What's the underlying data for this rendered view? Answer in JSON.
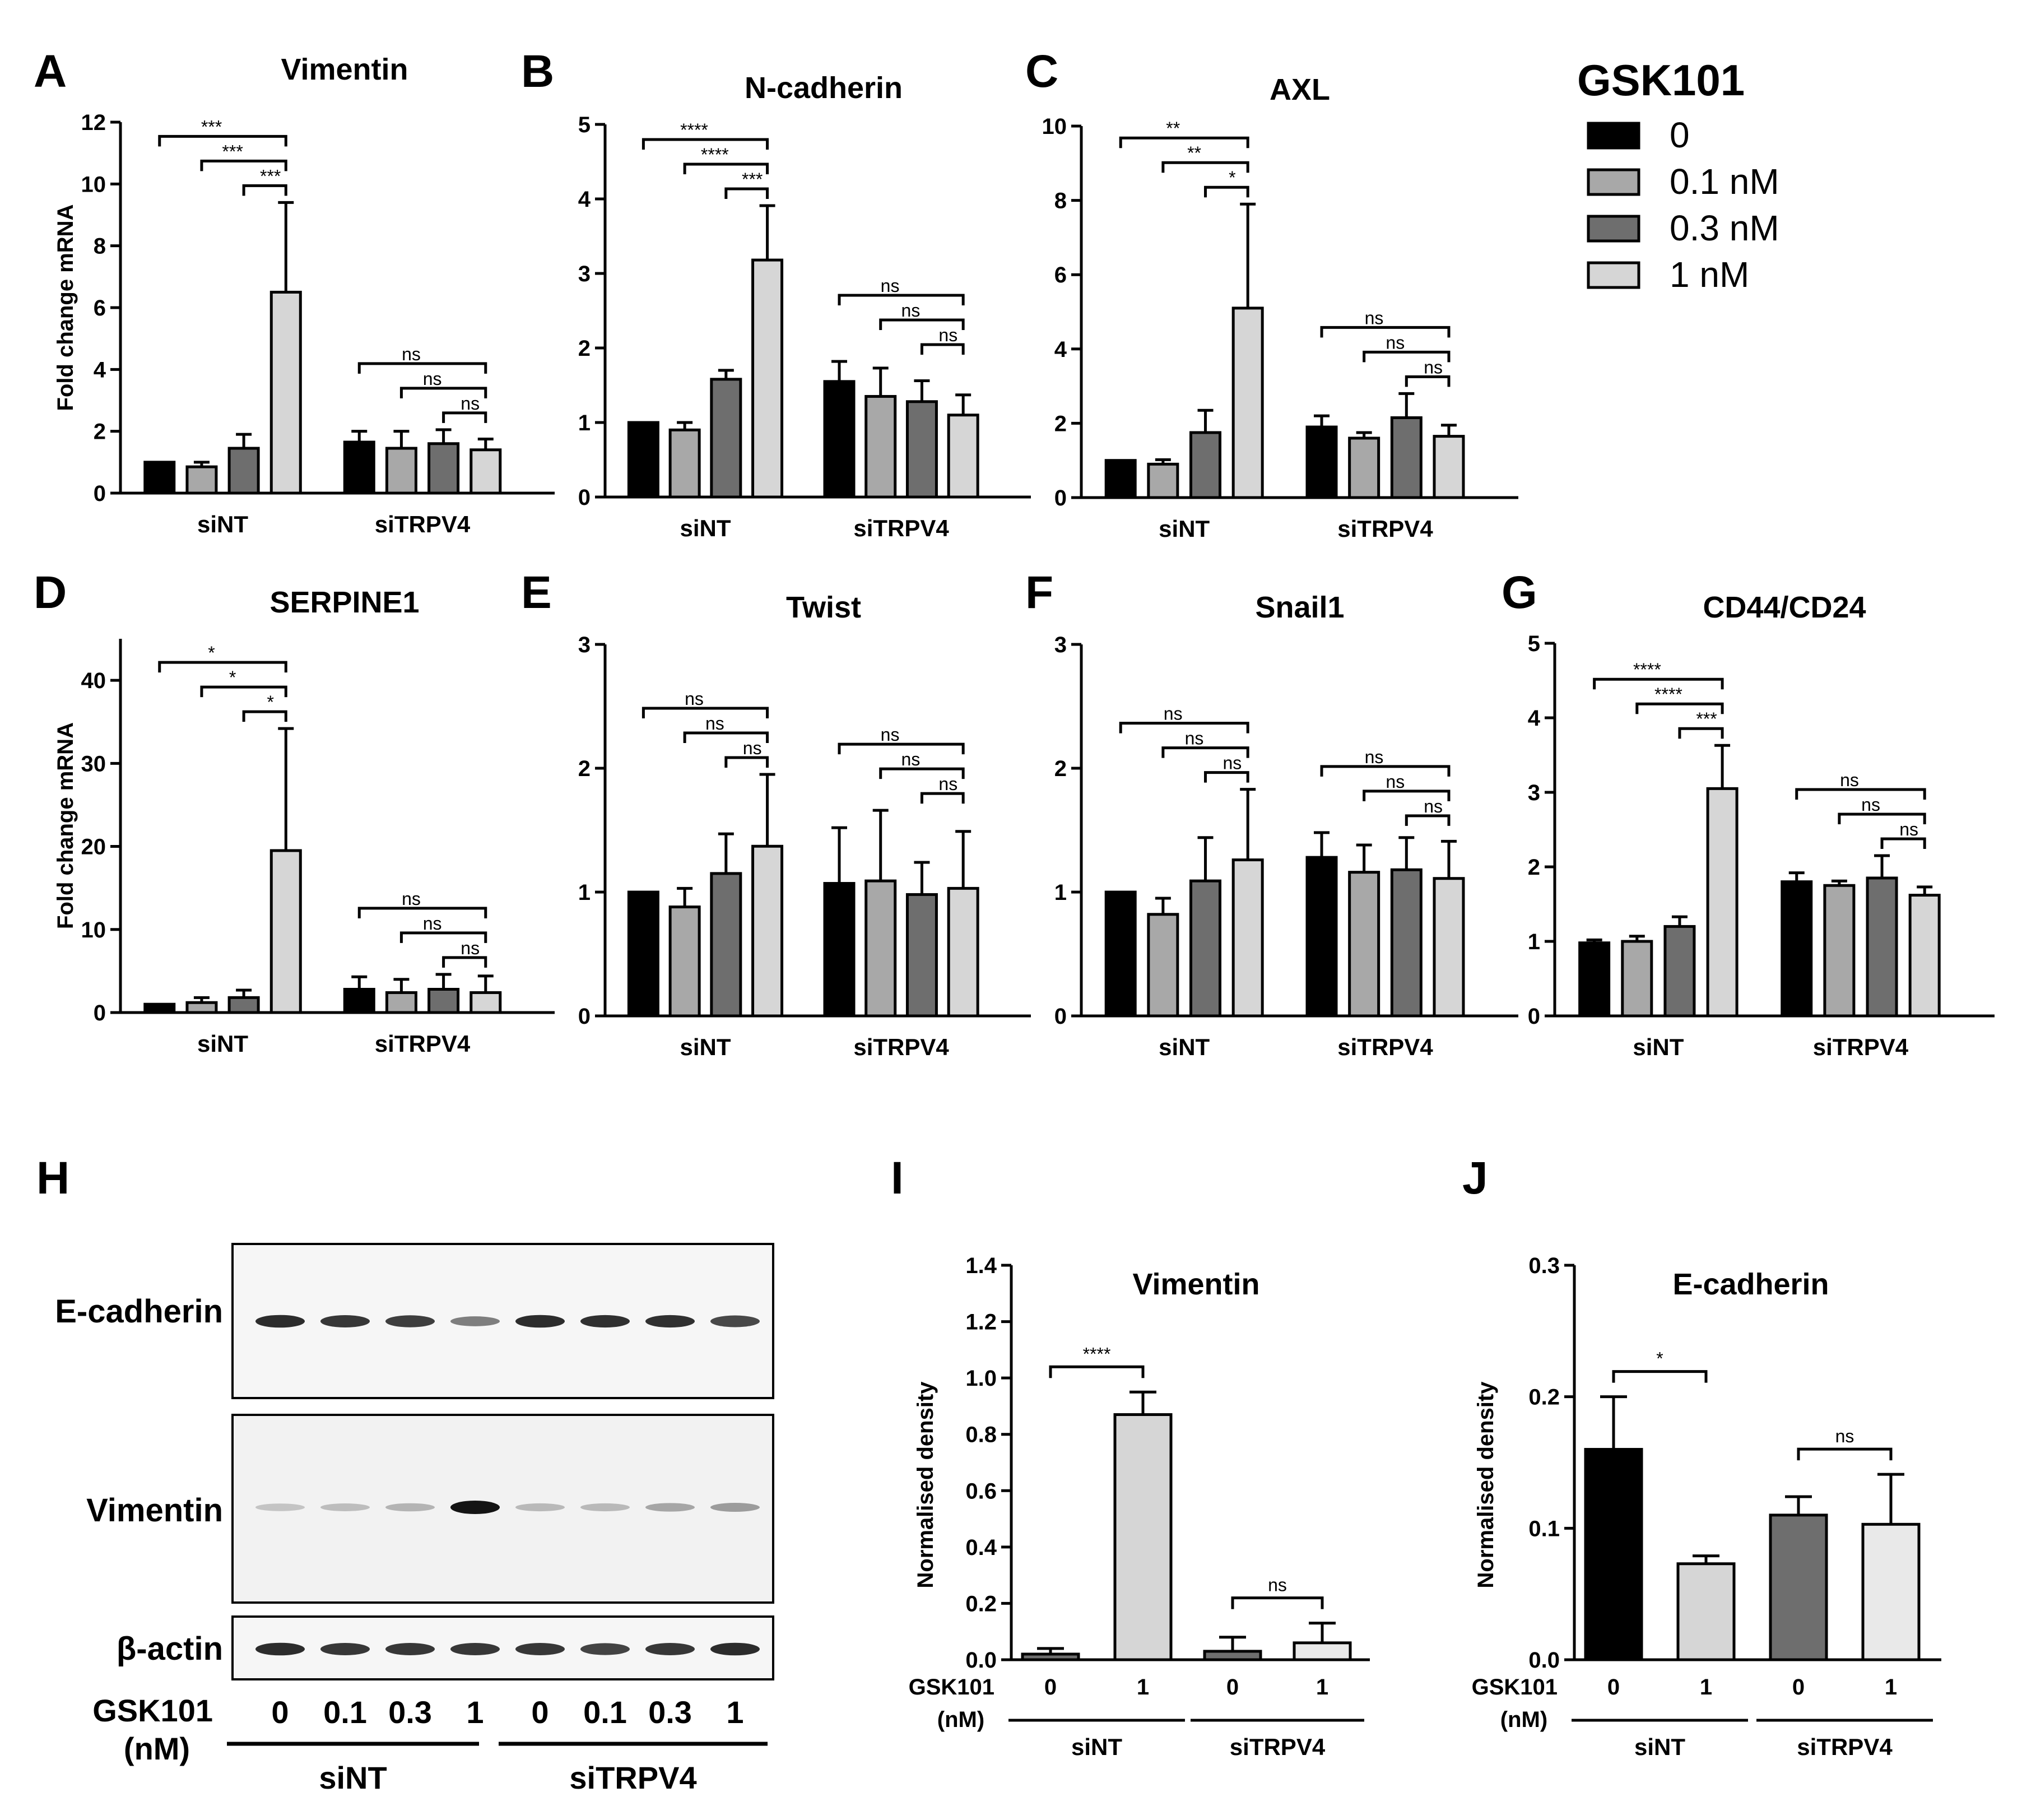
{
  "colors": {
    "black": "#000000",
    "grey_light": "#a8a8a8",
    "grey_dark": "#6e6e6e",
    "grey_vlight": "#d6d6d6",
    "vlightest": "#e9e9e9"
  },
  "legend": {
    "title": "GSK101",
    "items": [
      {
        "label": "0",
        "color_key": "black"
      },
      {
        "label": "0.1 nM",
        "color_key": "grey_light"
      },
      {
        "label": "0.3 nM",
        "color_key": "grey_dark"
      },
      {
        "label": "1 nM",
        "color_key": "grey_vlight"
      }
    ]
  },
  "chart_data": [
    {
      "panel": "A",
      "type": "bar",
      "title": "Vimentin",
      "ylabel": "Fold change mRNA",
      "ylim": [
        0,
        12
      ],
      "yticks": [
        "0",
        "2",
        "4",
        "6",
        "8",
        "10",
        "12"
      ],
      "groups": [
        "siNT",
        "siTRPV4"
      ],
      "series": [
        {
          "name": "0",
          "values": [
            1.0,
            1.65
          ],
          "errors": [
            0,
            0.35
          ]
        },
        {
          "name": "0.1 nM",
          "values": [
            0.85,
            1.45
          ],
          "errors": [
            0.15,
            0.55
          ]
        },
        {
          "name": "0.3 nM",
          "values": [
            1.45,
            1.6
          ],
          "errors": [
            0.45,
            0.45
          ]
        },
        {
          "name": "1 nM",
          "values": [
            6.5,
            1.4
          ],
          "errors": [
            2.9,
            0.35
          ]
        }
      ],
      "sig": [
        [
          "***",
          "***",
          "***"
        ],
        [
          "ns",
          "ns",
          "ns"
        ]
      ]
    },
    {
      "panel": "B",
      "type": "bar",
      "title": "N-cadherin",
      "ylabel": "",
      "ylim": [
        0,
        5
      ],
      "yticks": [
        "0",
        "1",
        "2",
        "3",
        "4",
        "5"
      ],
      "groups": [
        "siNT",
        "siTRPV4"
      ],
      "series": [
        {
          "name": "0",
          "values": [
            1.0,
            1.55
          ],
          "errors": [
            0,
            0.27
          ]
        },
        {
          "name": "0.1 nM",
          "values": [
            0.9,
            1.35
          ],
          "errors": [
            0.1,
            0.38
          ]
        },
        {
          "name": "0.3 nM",
          "values": [
            1.58,
            1.28
          ],
          "errors": [
            0.12,
            0.28
          ]
        },
        {
          "name": "1 nM",
          "values": [
            3.18,
            1.1
          ],
          "errors": [
            0.73,
            0.27
          ]
        }
      ],
      "sig": [
        [
          "****",
          "****",
          "***"
        ],
        [
          "ns",
          "ns",
          "ns"
        ]
      ]
    },
    {
      "panel": "C",
      "type": "bar",
      "title": "AXL",
      "ylabel": "",
      "ylim": [
        0,
        10
      ],
      "yticks": [
        "0",
        "2",
        "4",
        "6",
        "8",
        "10"
      ],
      "groups": [
        "siNT",
        "siTRPV4"
      ],
      "series": [
        {
          "name": "0",
          "values": [
            1.0,
            1.9
          ],
          "errors": [
            0,
            0.3
          ]
        },
        {
          "name": "0.1 nM",
          "values": [
            0.9,
            1.6
          ],
          "errors": [
            0.12,
            0.15
          ]
        },
        {
          "name": "0.3 nM",
          "values": [
            1.75,
            2.15
          ],
          "errors": [
            0.6,
            0.65
          ]
        },
        {
          "name": "1 nM",
          "values": [
            5.1,
            1.65
          ],
          "errors": [
            2.8,
            0.3
          ]
        }
      ],
      "sig": [
        [
          "**",
          "**",
          "*"
        ],
        [
          "ns",
          "ns",
          "ns"
        ]
      ]
    },
    {
      "panel": "D",
      "type": "bar",
      "title": "SERPINE1",
      "ylabel": "Fold change mRNA",
      "ylim": [
        0,
        45
      ],
      "yticks": [
        "0",
        "10",
        "20",
        "30",
        "40"
      ],
      "groups": [
        "siNT",
        "siTRPV4"
      ],
      "series": [
        {
          "name": "0",
          "values": [
            1.0,
            2.8
          ],
          "errors": [
            0,
            1.5
          ]
        },
        {
          "name": "0.1 nM",
          "values": [
            1.2,
            2.4
          ],
          "errors": [
            0.6,
            1.6
          ]
        },
        {
          "name": "0.3 nM",
          "values": [
            1.8,
            2.8
          ],
          "errors": [
            0.9,
            1.8
          ]
        },
        {
          "name": "1 nM",
          "values": [
            19.5,
            2.4
          ],
          "errors": [
            14.7,
            2.0
          ]
        }
      ],
      "sig": [
        [
          "*",
          "*",
          "*"
        ],
        [
          "ns",
          "ns",
          "ns"
        ]
      ]
    },
    {
      "panel": "E",
      "type": "bar",
      "title": "Twist",
      "ylabel": "",
      "ylim": [
        0,
        3
      ],
      "yticks": [
        "0",
        "1",
        "2",
        "3"
      ],
      "groups": [
        "siNT",
        "siTRPV4"
      ],
      "series": [
        {
          "name": "0",
          "values": [
            1.0,
            1.07
          ],
          "errors": [
            0,
            0.45
          ]
        },
        {
          "name": "0.1 nM",
          "values": [
            0.88,
            1.09
          ],
          "errors": [
            0.15,
            0.57
          ]
        },
        {
          "name": "0.3 nM",
          "values": [
            1.15,
            0.98
          ],
          "errors": [
            0.32,
            0.26
          ]
        },
        {
          "name": "1 nM",
          "values": [
            1.37,
            1.03
          ],
          "errors": [
            0.58,
            0.46
          ]
        }
      ],
      "sig": [
        [
          "ns",
          "ns",
          "ns"
        ],
        [
          "ns",
          "ns",
          "ns"
        ]
      ]
    },
    {
      "panel": "F",
      "type": "bar",
      "title": "Snail1",
      "ylabel": "",
      "ylim": [
        0,
        3
      ],
      "yticks": [
        "0",
        "1",
        "2",
        "3"
      ],
      "groups": [
        "siNT",
        "siTRPV4"
      ],
      "series": [
        {
          "name": "0",
          "values": [
            1.0,
            1.28
          ],
          "errors": [
            0,
            0.2
          ]
        },
        {
          "name": "0.1 nM",
          "values": [
            0.82,
            1.16
          ],
          "errors": [
            0.13,
            0.22
          ]
        },
        {
          "name": "0.3 nM",
          "values": [
            1.09,
            1.18
          ],
          "errors": [
            0.35,
            0.26
          ]
        },
        {
          "name": "1 nM",
          "values": [
            1.26,
            1.11
          ],
          "errors": [
            0.57,
            0.3
          ]
        }
      ],
      "sig": [
        [
          "ns",
          "ns",
          "ns"
        ],
        [
          "ns",
          "ns",
          "ns"
        ]
      ]
    },
    {
      "panel": "G",
      "type": "bar",
      "title": "CD44/CD24",
      "ylabel": "",
      "ylim": [
        0,
        5
      ],
      "yticks": [
        "0",
        "1",
        "2",
        "3",
        "4",
        "5"
      ],
      "groups": [
        "siNT",
        "siTRPV4"
      ],
      "series": [
        {
          "name": "0",
          "values": [
            0.98,
            1.8
          ],
          "errors": [
            0.04,
            0.12
          ]
        },
        {
          "name": "0.1 nM",
          "values": [
            1.0,
            1.75
          ],
          "errors": [
            0.07,
            0.06
          ]
        },
        {
          "name": "0.3 nM",
          "values": [
            1.2,
            1.85
          ],
          "errors": [
            0.13,
            0.3
          ]
        },
        {
          "name": "1 nM",
          "values": [
            3.05,
            1.62
          ],
          "errors": [
            0.58,
            0.11
          ]
        }
      ],
      "sig": [
        [
          "****",
          "****",
          "***"
        ],
        [
          "ns",
          "ns",
          "ns"
        ]
      ]
    },
    {
      "panel": "I",
      "type": "bar",
      "title": "Vimentin",
      "ylabel": "Normalised density",
      "ylim": [
        0,
        1.4
      ],
      "yticks": [
        "0.0",
        "0.2",
        "0.4",
        "0.6",
        "0.8",
        "1.0",
        "1.2",
        "1.4"
      ],
      "xlabel": "GSK101",
      "xunit": "(nM)",
      "groups": [
        "siNT",
        "siTRPV4"
      ],
      "doses": [
        "0",
        "1",
        "0",
        "1"
      ],
      "values": [
        0.02,
        0.87,
        0.03,
        0.06
      ],
      "errors": [
        0.02,
        0.08,
        0.05,
        0.07
      ],
      "color_keys": [
        "grey_dark",
        "grey_vlight",
        "grey_dark",
        "vlightest"
      ],
      "sig": [
        "****",
        "ns"
      ]
    },
    {
      "panel": "J",
      "type": "bar",
      "title": "E-cadherin",
      "ylabel": "Normalised density",
      "ylim": [
        0,
        0.3
      ],
      "yticks": [
        "0.0",
        "0.1",
        "0.2",
        "0.3"
      ],
      "xlabel": "GSK101",
      "xunit": "(nM)",
      "groups": [
        "siNT",
        "siTRPV4"
      ],
      "doses": [
        "0",
        "1",
        "0",
        "1"
      ],
      "values": [
        0.16,
        0.073,
        0.11,
        0.103
      ],
      "errors": [
        0.04,
        0.006,
        0.014,
        0.038
      ],
      "color_keys": [
        "black",
        "grey_vlight",
        "grey_dark",
        "vlightest"
      ],
      "sig": [
        "*",
        "ns"
      ]
    }
  ],
  "western_blot": {
    "panel": "H",
    "rows": [
      {
        "label": "E-cadherin",
        "intensities": [
          0.9,
          0.85,
          0.82,
          0.55,
          0.9,
          0.88,
          0.88,
          0.78
        ]
      },
      {
        "label": "Vimentin",
        "intensities": [
          0.25,
          0.28,
          0.32,
          1.0,
          0.3,
          0.3,
          0.38,
          0.42
        ]
      },
      {
        "label": "β-actin",
        "intensities": [
          0.9,
          0.85,
          0.85,
          0.85,
          0.85,
          0.8,
          0.85,
          0.9
        ]
      }
    ],
    "dose_label": "GSK101",
    "dose_unit": "(nM)",
    "doses": [
      "0",
      "0.1",
      "0.3",
      "1",
      "0",
      "0.1",
      "0.3",
      "1"
    ],
    "groups": [
      "siNT",
      "siTRPV4"
    ]
  }
}
